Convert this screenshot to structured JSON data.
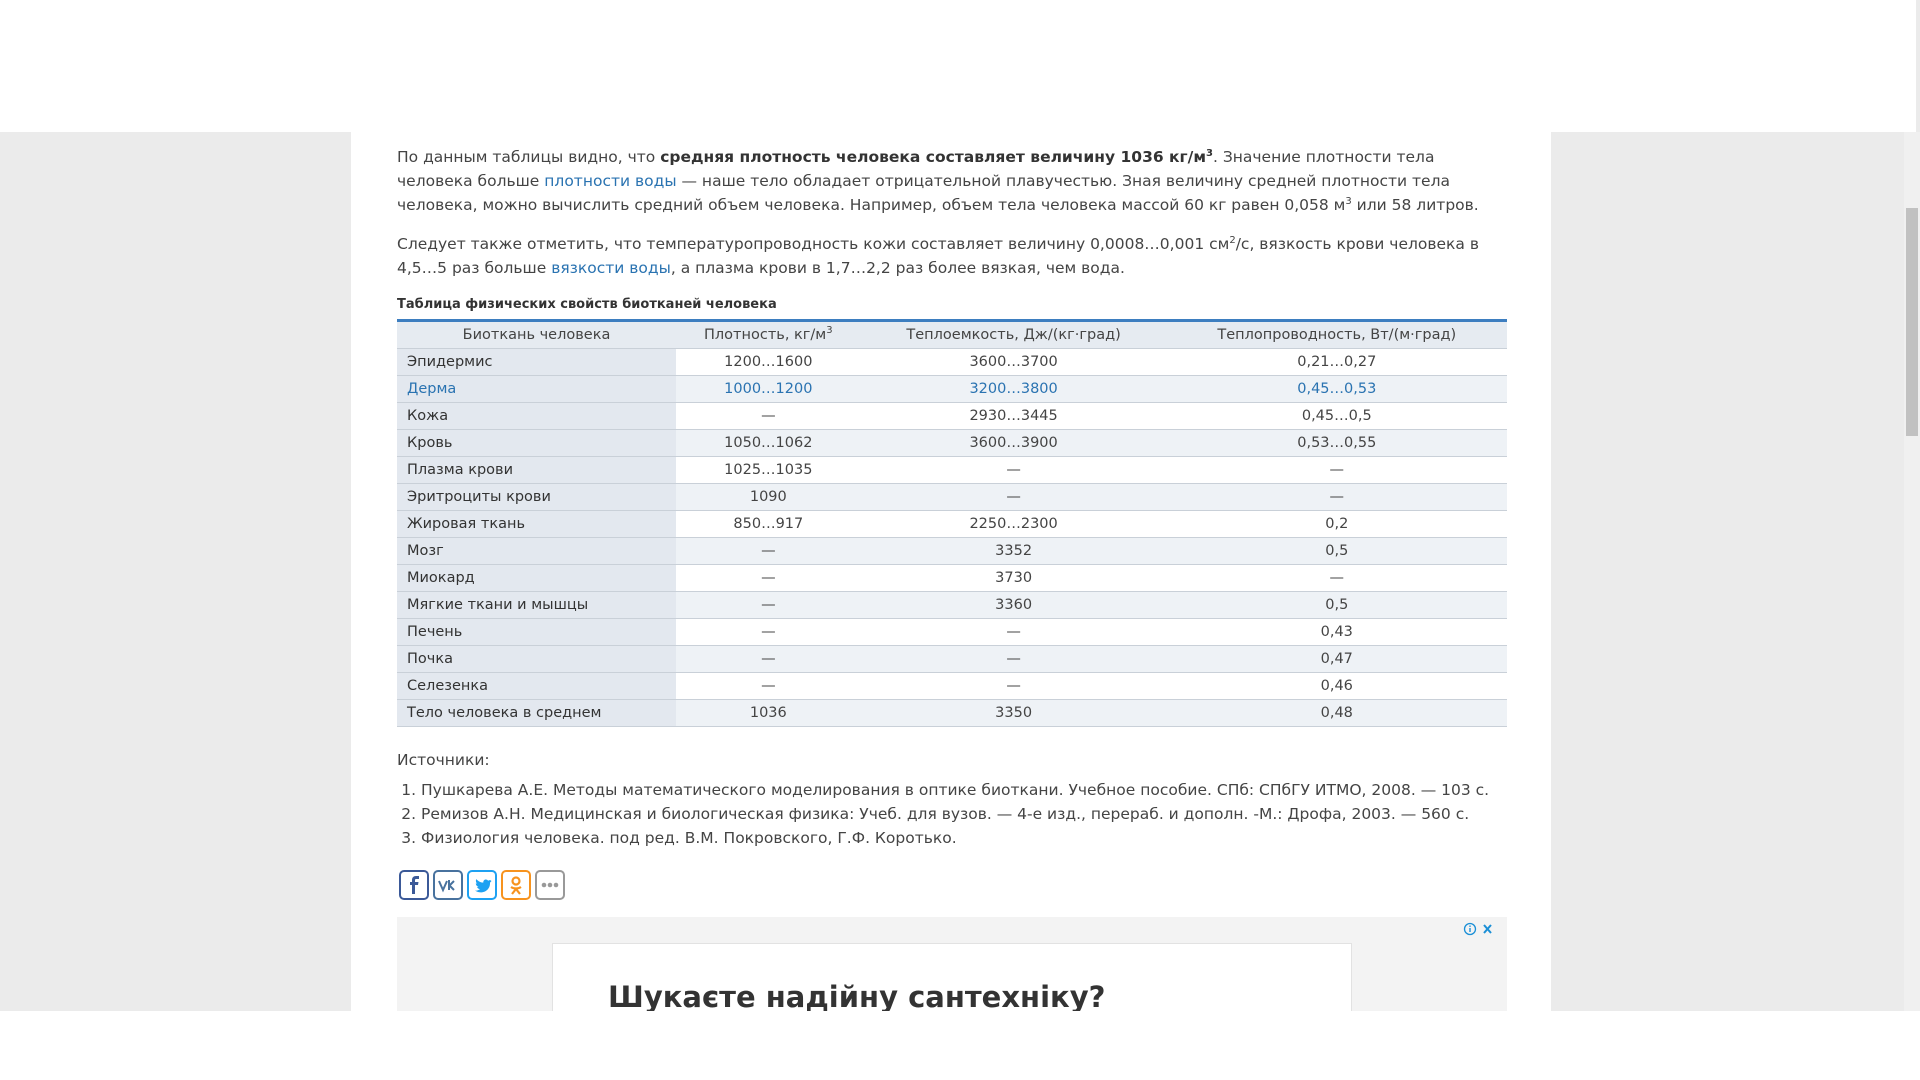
{
  "article": {
    "paragraph1": [
      "По данным таблицы видно, что ",
      "средняя плотность человека составляет величину 1036 кг/м",
      "3",
      ". Значение плотности тела человека больше ",
      "плотности воды",
      " — наше тело обладает отрицательной плавучестью. Зная величину средней плотности тела человека, можно вычислить средний объем человека. Например, объем тела человека массой 60 кг равен 0,058 м",
      "3",
      " или 58 литров."
    ],
    "paragraph2": [
      "Следует также отметить, что температуропроводность кожи составляет величину 0,0008…0,001 см",
      "2",
      "/с, вязкость крови человека в 4,5…5 раз больше ",
      "вязкости воды",
      ", а плазма крови в 1,7…2,2 раз более вязкая, чем вода."
    ]
  },
  "table": {
    "caption": "Таблица физических свойств биотканей человека",
    "header": [
      "Биоткань человека",
      [
        "Плотность, кг/м",
        "3"
      ],
      "Теплоемкость, Дж/(кг·град)",
      "Теплопроводность, Вт/(м·град)"
    ],
    "rows": [
      [
        "Эпидермис",
        "1200…1600",
        "3600…3700",
        "0,21…0,27"
      ],
      [
        "Дерма",
        "1000…1200",
        "3200…3800",
        "0,45…0,53"
      ],
      [
        "Кожа",
        "—",
        "2930…3445",
        "0,45…0,5"
      ],
      [
        "Кровь",
        "1050…1062",
        "3600…3900",
        "0,53…0,55"
      ],
      [
        "Плазма крови",
        "1025…1035",
        "—",
        "—"
      ],
      [
        "Эритроциты крови",
        "1090",
        "—",
        "—"
      ],
      [
        "Жировая ткань",
        "850…917",
        "2250…2300",
        "0,2"
      ],
      [
        "Мозг",
        "—",
        "3352",
        "0,5"
      ],
      [
        "Миокард",
        "—",
        "3730",
        "—"
      ],
      [
        "Мягкие ткани и мышцы",
        "—",
        "3360",
        "0,5"
      ],
      [
        "Печень",
        "—",
        "—",
        "0,43"
      ],
      [
        "Почка",
        "—",
        "—",
        "0,47"
      ],
      [
        "Селезенка",
        "—",
        "—",
        "0,46"
      ],
      [
        "Тело человека в среднем",
        "1036",
        "3350",
        "0,48"
      ]
    ]
  },
  "sources": {
    "title": "Источники:",
    "items": [
      "Пушкарева А.Е. Методы математического моделирования в оптике биоткани. Учебное пособие. СПб: СПбГУ ИТМО, 2008. — 103 с.",
      "Ремизов А.Н. Медицинская и биологическая физика: Учеб. для вузов. — 4-е изд., перераб. и дополн. -М.: Дрофа, 2003. — 560 с.",
      "Физиология человека. под ред. В.М. Покровского, Г.Ф. Коротько."
    ]
  },
  "ad": {
    "headline": "Шукаєте надійну сантехніку?"
  }
}
